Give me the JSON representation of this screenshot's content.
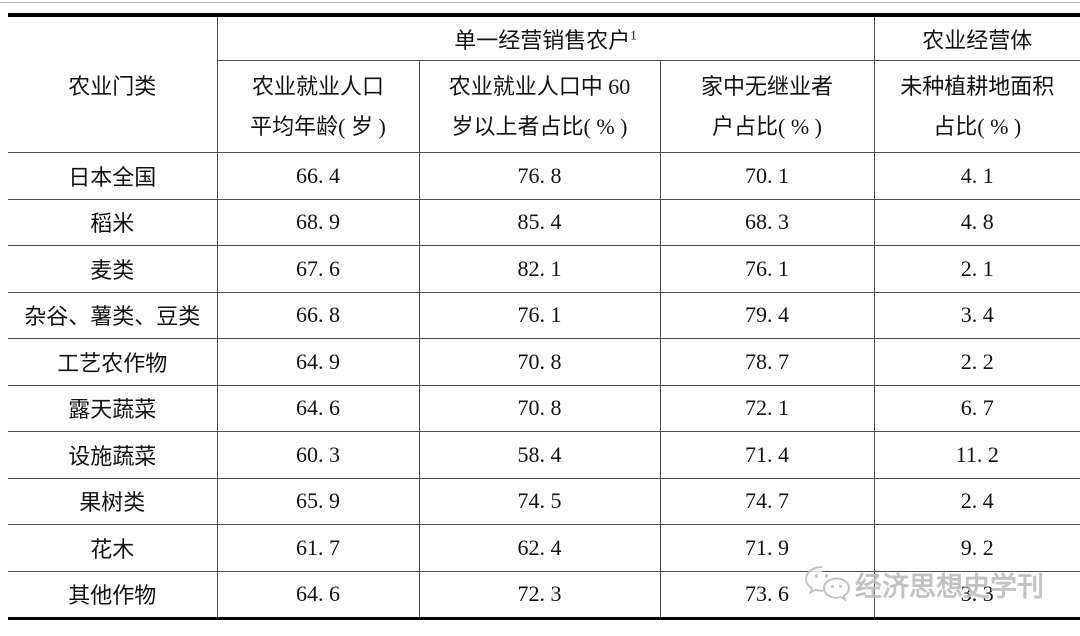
{
  "table": {
    "corner_header": "农业门类",
    "groups": [
      {
        "label": "单一经营销售农户",
        "superscript": "1"
      },
      {
        "label": "农业经营体"
      }
    ],
    "sub_headers": [
      {
        "line1": "农业就业人口",
        "line2": "平均年龄( 岁 )"
      },
      {
        "line1": "农业就业人口中 60",
        "line2": "岁以上者占比( % )"
      },
      {
        "line1": "家中无继业者",
        "line2": "户占比( % )"
      },
      {
        "line1": "未种植耕地面积",
        "line2": "占比( % )"
      }
    ],
    "rows": [
      {
        "category": "日本全国",
        "values": [
          "66. 4",
          "76. 8",
          "70. 1",
          "4. 1"
        ]
      },
      {
        "category": "稻米",
        "values": [
          "68. 9",
          "85. 4",
          "68. 3",
          "4. 8"
        ]
      },
      {
        "category": "麦类",
        "values": [
          "67. 6",
          "82. 1",
          "76. 1",
          "2. 1"
        ]
      },
      {
        "category": "杂谷、薯类、豆类",
        "values": [
          "66. 8",
          "76. 1",
          "79. 4",
          "3. 4"
        ]
      },
      {
        "category": "工艺农作物",
        "values": [
          "64. 9",
          "70. 8",
          "78. 7",
          "2. 2"
        ]
      },
      {
        "category": "露天蔬菜",
        "values": [
          "64. 6",
          "70. 8",
          "72. 1",
          "6. 7"
        ]
      },
      {
        "category": "设施蔬菜",
        "values": [
          "60. 3",
          "58. 4",
          "71. 4",
          "11. 2"
        ]
      },
      {
        "category": "果树类",
        "values": [
          "65. 9",
          "74. 5",
          "74. 7",
          "2. 4"
        ]
      },
      {
        "category": "花木",
        "values": [
          "61. 7",
          "62. 4",
          "71. 9",
          "9. 2"
        ]
      },
      {
        "category": "其他作物",
        "values": [
          "64. 6",
          "72. 3",
          "73. 6",
          "3. 3"
        ]
      }
    ]
  },
  "watermark": {
    "text": "经济思想史学刊",
    "icon": "wechat-icon",
    "color": "#bdbdbd"
  },
  "colors": {
    "thick_border": "#000000",
    "thin_border": "#4f4f4f",
    "text": "#121212",
    "background": "#fefefe"
  }
}
